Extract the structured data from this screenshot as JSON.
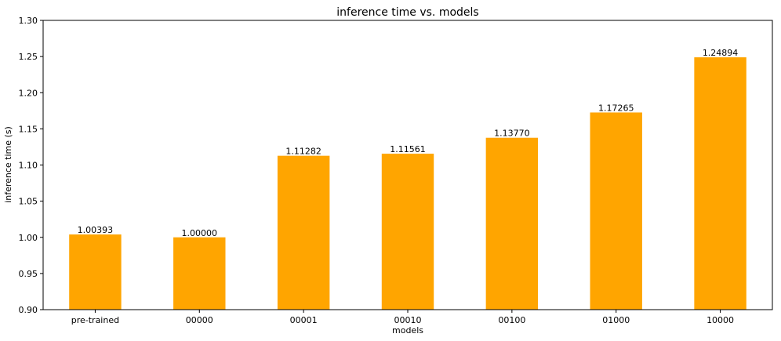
{
  "chart_data": {
    "type": "bar",
    "title": "inference time vs. models",
    "xlabel": "models",
    "ylabel": "inference time (s)",
    "categories": [
      "pre-trained",
      "00000",
      "00001",
      "00010",
      "00100",
      "01000",
      "10000"
    ],
    "values": [
      1.00393,
      1.0,
      1.11282,
      1.11561,
      1.1377,
      1.17265,
      1.24894
    ],
    "data_labels": [
      "1.00393",
      "1.00000",
      "1.11282",
      "1.11561",
      "1.13770",
      "1.17265",
      "1.24894"
    ],
    "ylim": [
      0.9,
      1.3
    ],
    "yticks": [
      "0.90",
      "0.95",
      "1.00",
      "1.05",
      "1.10",
      "1.15",
      "1.20",
      "1.25",
      "1.30"
    ],
    "bar_color": "#FFA500",
    "grid": false
  }
}
